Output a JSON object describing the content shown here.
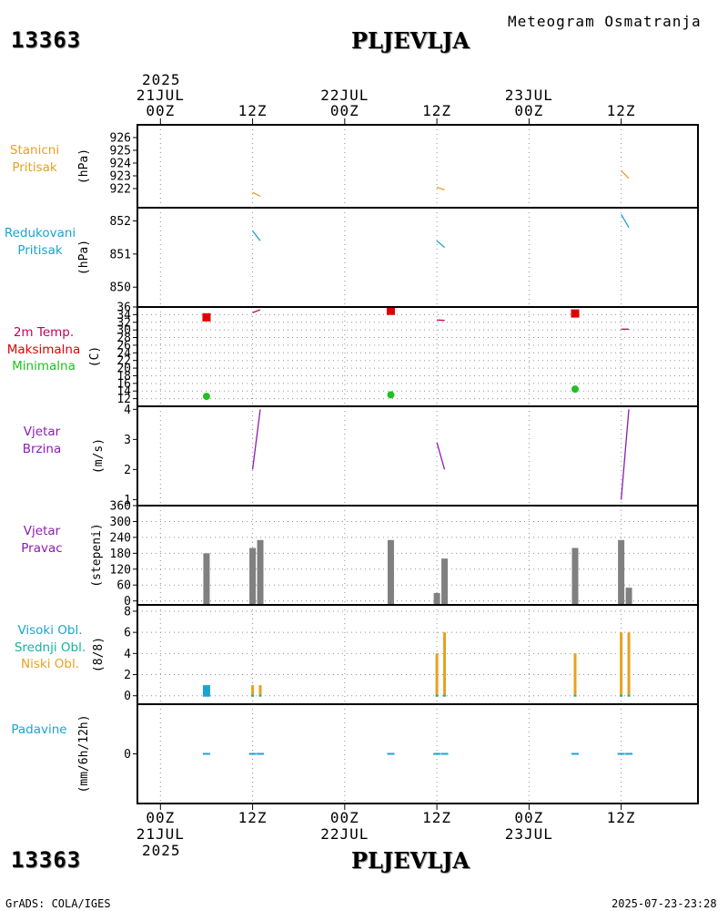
{
  "header": {
    "station_id": "13363",
    "station_name": "PLJEVLJA",
    "title": "Meteogram Osmatranja"
  },
  "footer": {
    "station_id": "13363",
    "station_name": "PLJEVLJA",
    "credit": "GrADS: COLA/IGES",
    "timestamp": "2025-07-23-23:28"
  },
  "time_axis": {
    "year": "2025",
    "ticks": [
      {
        "t": 0,
        "label": "00Z",
        "date": "21JUL"
      },
      {
        "t": 12,
        "label": "12Z",
        "date": ""
      },
      {
        "t": 24,
        "label": "00Z",
        "date": "22JUL"
      },
      {
        "t": 36,
        "label": "12Z",
        "date": ""
      },
      {
        "t": 48,
        "label": "00Z",
        "date": "23JUL"
      },
      {
        "t": 60,
        "label": "12Z",
        "date": ""
      }
    ],
    "range_hours": [
      -3,
      70
    ]
  },
  "panels": {
    "pressure": {
      "label1": "Stanicni",
      "label2": "Pritisak",
      "unit": "(hPa)",
      "label_color": "#e8a020"
    },
    "reduced_pressure": {
      "label1": "Redukovani",
      "label2": "Pritisak",
      "unit": "(hPa)",
      "label_color": "#1aa4d2"
    },
    "temperature": {
      "label1": "2m Temp.",
      "label2": "Maksimalna",
      "label3": "Minimalna",
      "unit": "(C)",
      "label1_color": "#c8005a",
      "label2_color": "#e00000",
      "label3_color": "#20c020"
    },
    "wind_speed": {
      "label1": "Vjetar",
      "label2": "Brzina",
      "unit": "(m/s)",
      "label_color": "#8c1cb4"
    },
    "wind_dir": {
      "label1": "Vjetar",
      "label2": "Pravac",
      "unit": "(stepeni)",
      "label_color": "#8c1cb4"
    },
    "clouds": {
      "label1": "Visoki Obl.",
      "label2": "Srednji Obl.",
      "label3": "Niski Obl.",
      "unit": "(8/8)",
      "label1_color": "#1aa4d2",
      "label2_color": "#10b4a0",
      "label3_color": "#e8a020"
    },
    "precip": {
      "label1": "Padavine",
      "unit": "(mm/6h/12h)",
      "label_color": "#1aa4d2"
    }
  },
  "chart_data": [
    {
      "type": "line",
      "id": "pressure",
      "ylabel": "(hPa)",
      "ylim": [
        920.5,
        927
      ],
      "yticks": [
        922,
        923,
        924,
        925,
        926
      ],
      "color": "#e8a020",
      "segments": [
        {
          "x": [
            12,
            13
          ],
          "y": [
            921.7,
            921.4
          ]
        },
        {
          "x": [
            36,
            37
          ],
          "y": [
            922.1,
            921.9
          ]
        },
        {
          "x": [
            60,
            61
          ],
          "y": [
            923.4,
            922.8
          ]
        }
      ]
    },
    {
      "type": "line",
      "id": "reduced_pressure",
      "ylabel": "(hPa)",
      "ylim": [
        849.4,
        852.4
      ],
      "yticks": [
        850,
        851,
        852
      ],
      "color": "#1aa4d2",
      "segments": [
        {
          "x": [
            12,
            13
          ],
          "y": [
            851.7,
            851.4
          ]
        },
        {
          "x": [
            36,
            37
          ],
          "y": [
            851.4,
            851.2
          ]
        },
        {
          "x": [
            60,
            61
          ],
          "y": [
            852.2,
            851.8
          ]
        }
      ]
    },
    {
      "type": "line",
      "id": "temperature",
      "ylabel": "(C)",
      "ylim": [
        10,
        36
      ],
      "yticks": [
        12,
        14,
        16,
        18,
        20,
        22,
        24,
        26,
        28,
        30,
        32,
        34,
        36
      ],
      "series": [
        {
          "name": "2m Temp.",
          "color": "#c8005a",
          "segments": [
            {
              "x": [
                12,
                13
              ],
              "y": [
                34.5,
                35.3
              ]
            },
            {
              "x": [
                36,
                37
              ],
              "y": [
                32.6,
                32.5
              ]
            },
            {
              "x": [
                60,
                61
              ],
              "y": [
                30.2,
                30.2
              ]
            }
          ]
        },
        {
          "name": "Maksimalna",
          "color": "#e00000",
          "marker": "square",
          "points": [
            {
              "x": 6,
              "y": 33.3
            },
            {
              "x": 30,
              "y": 35.0
            },
            {
              "x": 54,
              "y": 34.3
            }
          ]
        },
        {
          "name": "Minimalna",
          "color": "#20c020",
          "marker": "circle",
          "points": [
            {
              "x": 6,
              "y": 12.6
            },
            {
              "x": 30,
              "y": 13.0
            },
            {
              "x": 54,
              "y": 14.5
            }
          ]
        }
      ]
    },
    {
      "type": "line",
      "id": "wind_speed",
      "ylabel": "(m/s)",
      "ylim": [
        0.8,
        4.1
      ],
      "yticks": [
        1,
        2,
        3,
        4
      ],
      "color": "#8c1cb4",
      "segments": [
        {
          "x": [
            12,
            13
          ],
          "y": [
            2.0,
            4.0
          ]
        },
        {
          "x": [
            36,
            37
          ],
          "y": [
            2.9,
            2.0
          ]
        },
        {
          "x": [
            60,
            61
          ],
          "y": [
            1.0,
            4.0
          ]
        }
      ]
    },
    {
      "type": "bar",
      "id": "wind_dir",
      "ylabel": "(stepeni)",
      "ylim": [
        -15,
        360
      ],
      "yticks": [
        0,
        60,
        120,
        180,
        240,
        300,
        360
      ],
      "color": "#808080",
      "bars": [
        {
          "x": 6,
          "y": 180
        },
        {
          "x": 12,
          "y": 200
        },
        {
          "x": 13,
          "y": 230
        },
        {
          "x": 30,
          "y": 230
        },
        {
          "x": 36,
          "y": 30
        },
        {
          "x": 37,
          "y": 160
        },
        {
          "x": 54,
          "y": 200
        },
        {
          "x": 60,
          "y": 230
        },
        {
          "x": 61,
          "y": 50
        }
      ]
    },
    {
      "type": "bar",
      "id": "clouds",
      "ylabel": "(8/8)",
      "ylim": [
        -0.8,
        8.6
      ],
      "yticks": [
        0,
        2,
        4,
        6,
        8
      ],
      "series": [
        {
          "name": "Visoki Obl.",
          "color": "#1aa4d2",
          "bars": [
            {
              "x": 6,
              "y": 1
            }
          ]
        },
        {
          "name": "Niski Obl.",
          "color": "#e8a020",
          "bars": [
            {
              "x": 12,
              "y": 1
            },
            {
              "x": 13,
              "y": 1
            },
            {
              "x": 36,
              "y": 4
            },
            {
              "x": 37,
              "y": 6
            },
            {
              "x": 54,
              "y": 4
            },
            {
              "x": 60,
              "y": 6
            },
            {
              "x": 61,
              "y": 6
            }
          ]
        }
      ]
    },
    {
      "type": "bar",
      "id": "precip",
      "ylabel": "(mm/6h/12h)",
      "ylim": [
        -5,
        5
      ],
      "yticks": [
        0
      ],
      "color": "#1aa4d2",
      "bars": [
        {
          "x": 6,
          "y": 0
        },
        {
          "x": 12,
          "y": 0
        },
        {
          "x": 13,
          "y": 0
        },
        {
          "x": 30,
          "y": 0
        },
        {
          "x": 36,
          "y": 0
        },
        {
          "x": 37,
          "y": 0
        },
        {
          "x": 54,
          "y": 0
        },
        {
          "x": 60,
          "y": 0
        },
        {
          "x": 61,
          "y": 0
        }
      ]
    }
  ]
}
